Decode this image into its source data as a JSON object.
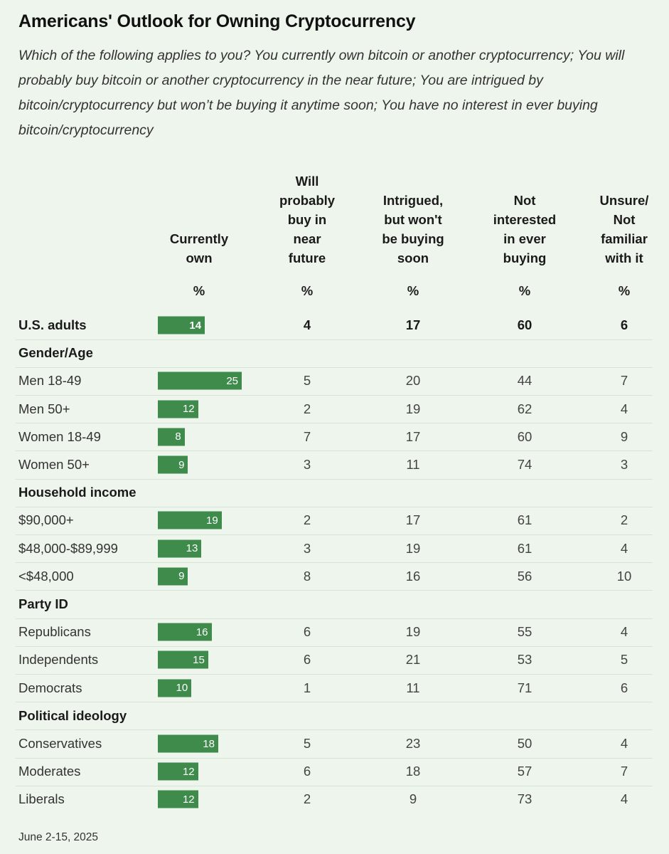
{
  "title": "Americans' Outlook for Owning Cryptocurrency",
  "subtitle": "Which of the following applies to you? You currently own bitcoin or another cryptocurrency; You will probably buy bitcoin or another cryptocurrency in the near future; You are intrigued by bitcoin/cryptocurrency but won’t be buying it anytime soon; You have no interest in ever buying bitcoin/cryptocurrency",
  "footer": "June 2-15, 2025",
  "colors": {
    "bar": "#3e8b4c",
    "background": "#eef5ec"
  },
  "chart_data": {
    "type": "table",
    "title": "Americans' Outlook for Owning Cryptocurrency",
    "columns": [
      {
        "label_lines": [
          "Currently",
          "own"
        ],
        "unit": "%"
      },
      {
        "label_lines": [
          "Will",
          "probably",
          "buy in",
          "near",
          "future"
        ],
        "unit": "%"
      },
      {
        "label_lines": [
          "Intrigued,",
          "but won't",
          "be buying",
          "soon"
        ],
        "unit": "%"
      },
      {
        "label_lines": [
          "Not",
          "interested",
          "in ever",
          "buying"
        ],
        "unit": "%"
      },
      {
        "label_lines": [
          "Unsure/",
          "Not",
          "familiar",
          "with it"
        ],
        "unit": "%"
      }
    ],
    "bar_column": 0,
    "bar_scale_max": 25,
    "rows": [
      {
        "kind": "row",
        "label": "U.S. adults",
        "bold": true,
        "values": [
          14,
          4,
          17,
          60,
          6
        ]
      },
      {
        "kind": "section",
        "label": "Gender/Age"
      },
      {
        "kind": "row",
        "label": "Men 18-49",
        "values": [
          25,
          5,
          20,
          44,
          7
        ]
      },
      {
        "kind": "row",
        "label": "Men 50+",
        "values": [
          12,
          2,
          19,
          62,
          4
        ]
      },
      {
        "kind": "row",
        "label": "Women 18-49",
        "values": [
          8,
          7,
          17,
          60,
          9
        ]
      },
      {
        "kind": "row",
        "label": "Women 50+",
        "values": [
          9,
          3,
          11,
          74,
          3
        ]
      },
      {
        "kind": "section",
        "label": "Household income"
      },
      {
        "kind": "row",
        "label": "$90,000+",
        "values": [
          19,
          2,
          17,
          61,
          2
        ]
      },
      {
        "kind": "row",
        "label": "$48,000-$89,999",
        "values": [
          13,
          3,
          19,
          61,
          4
        ]
      },
      {
        "kind": "row",
        "label": "<$48,000",
        "values": [
          9,
          8,
          16,
          56,
          10
        ]
      },
      {
        "kind": "section",
        "label": "Party ID"
      },
      {
        "kind": "row",
        "label": "Republicans",
        "values": [
          16,
          6,
          19,
          55,
          4
        ]
      },
      {
        "kind": "row",
        "label": "Independents",
        "values": [
          15,
          6,
          21,
          53,
          5
        ]
      },
      {
        "kind": "row",
        "label": "Democrats",
        "values": [
          10,
          1,
          11,
          71,
          6
        ]
      },
      {
        "kind": "section",
        "label": "Political ideology"
      },
      {
        "kind": "row",
        "label": "Conservatives",
        "values": [
          18,
          5,
          23,
          50,
          4
        ]
      },
      {
        "kind": "row",
        "label": "Moderates",
        "values": [
          12,
          6,
          18,
          57,
          7
        ]
      },
      {
        "kind": "row",
        "label": "Liberals",
        "values": [
          12,
          2,
          9,
          73,
          4
        ]
      }
    ]
  }
}
